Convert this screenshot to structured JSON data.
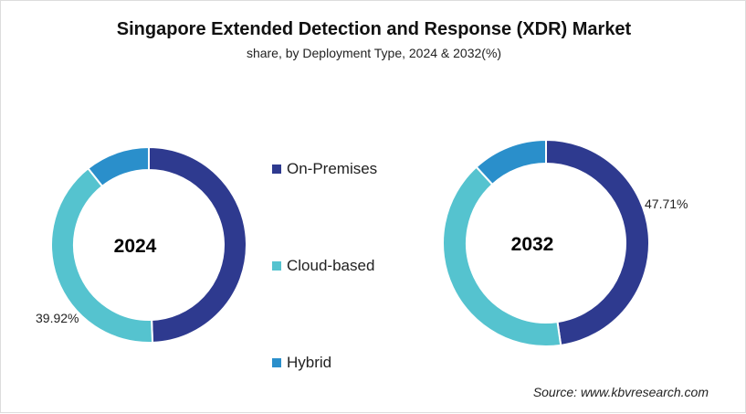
{
  "chart_data": [
    {
      "type": "pie",
      "title": "Singapore Extended Detection and Response (XDR) Market",
      "subtitle": "share, by Deployment Type, 2024 & 2032(%)",
      "center_label": "2024",
      "categories": [
        "On-Premises",
        "Cloud-based",
        "Hybrid"
      ],
      "values": [
        49.4,
        39.92,
        10.68
      ],
      "data_labels": {
        "Cloud-based": "39.92%"
      },
      "donut": true
    },
    {
      "type": "pie",
      "center_label": "2032",
      "categories": [
        "On-Premises",
        "Cloud-based",
        "Hybrid"
      ],
      "values": [
        47.71,
        40.49,
        11.8
      ],
      "data_labels": {
        "On-Premises": "47.71%"
      },
      "donut": true
    }
  ],
  "legend": [
    {
      "label": "On-Premises",
      "color": "#2e3a8f"
    },
    {
      "label": "Cloud-based",
      "color": "#55c3cf"
    },
    {
      "label": "Hybrid",
      "color": "#2a8fcb"
    }
  ],
  "source": "Source: www.kbvresearch.com"
}
